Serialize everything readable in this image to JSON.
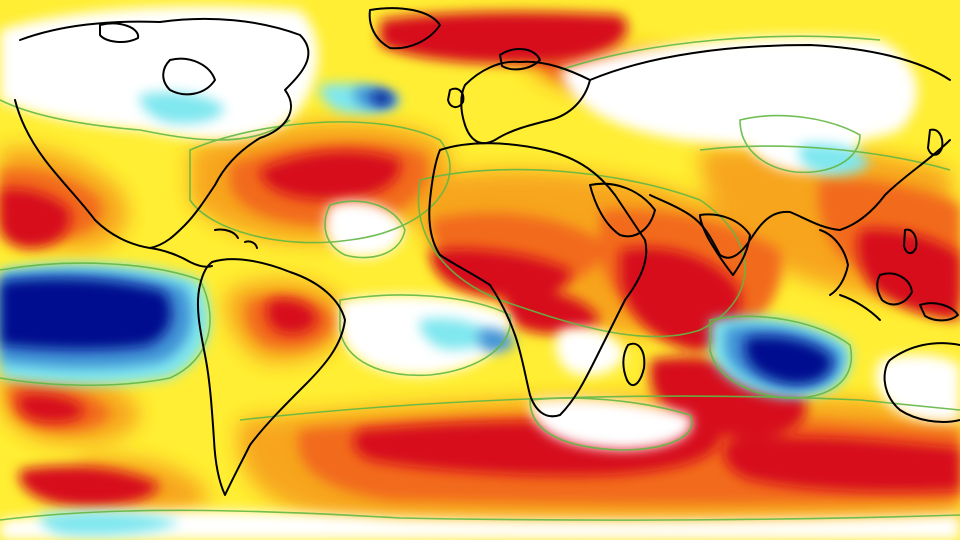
{
  "map": {
    "type": "global-anomaly-map",
    "projection": "equirectangular",
    "legend": "none",
    "colors": {
      "strong_positive": "#d7101a",
      "positive": "#f26a1b",
      "moderate_positive": "#f7a21b",
      "weak_positive": "#ffee33",
      "neutral": "#ffffff",
      "weak_negative": "#7fe7ef",
      "negative": "#3f93d6",
      "strong_negative": "#06088f",
      "contour": "#62b844",
      "coastline": "#000000"
    },
    "regions": [
      {
        "name": "north-atlantic-greenland-warm",
        "category": "strong_positive"
      },
      {
        "name": "north-atlantic-subtropical-warm",
        "category": "positive"
      },
      {
        "name": "africa-indian-ocean-warm",
        "category": "strong_positive"
      },
      {
        "name": "southern-ocean-warm-band",
        "category": "strong_positive"
      },
      {
        "name": "maritime-continent-warm",
        "category": "strong_positive"
      },
      {
        "name": "eastern-pacific-cold",
        "category": "strong_negative"
      },
      {
        "name": "southern-indian-ocean-cold",
        "category": "strong_negative"
      }
    ]
  }
}
